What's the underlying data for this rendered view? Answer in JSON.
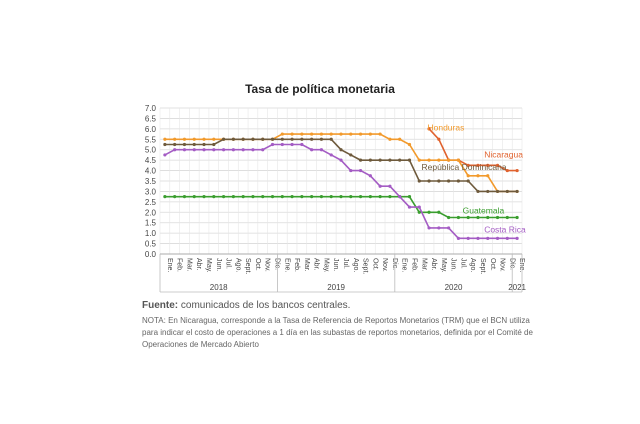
{
  "chart_data": {
    "type": "line",
    "title": "Tasa de política monetaria",
    "yticks": [
      "7.0",
      "6.5",
      "6.0",
      "5.5",
      "5.0",
      "4.5",
      "4.0",
      "3.5",
      "3.0",
      "2.5",
      "2.0",
      "1.5",
      "1.0",
      "0.5",
      "0.0"
    ],
    "ylim": [
      0,
      7
    ],
    "grid": true,
    "months": [
      "Ene.",
      "Feb.",
      "Mar.",
      "Abr.",
      "May.",
      "Jun.",
      "Jul.",
      "Ago.",
      "Sept.",
      "Oct.",
      "Nov.",
      "Dic.",
      "Ene.",
      "Feb.",
      "Mar.",
      "Abr.",
      "May.",
      "Jun.",
      "Jul.",
      "Ago.",
      "Sept.",
      "Oct.",
      "Nov.",
      "Dic.",
      "Ene.",
      "Feb.",
      "Mar.",
      "Abr.",
      "May.",
      "Jun.",
      "Jul.",
      "Ago.",
      "Sept.",
      "Oct.",
      "Nov.",
      "Dic.",
      "Ene."
    ],
    "years": [
      {
        "label": "2018",
        "start": 0,
        "end": 11
      },
      {
        "label": "2019",
        "start": 12,
        "end": 23
      },
      {
        "label": "2020",
        "start": 24,
        "end": 35
      },
      {
        "label": "2021",
        "start": 36,
        "end": 36
      }
    ],
    "series": [
      {
        "name": "Nicaragua",
        "color": "#e0622e",
        "values": [
          null,
          null,
          null,
          null,
          null,
          null,
          null,
          null,
          null,
          null,
          null,
          null,
          null,
          null,
          null,
          null,
          null,
          null,
          null,
          null,
          null,
          null,
          null,
          null,
          null,
          null,
          null,
          6.0,
          5.5,
          4.5,
          4.5,
          4.25,
          4.25,
          4.25,
          4.25,
          4.0,
          4.0
        ]
      },
      {
        "name": "Honduras",
        "color": "#f29a2c",
        "values": [
          5.5,
          5.5,
          5.5,
          5.5,
          5.5,
          5.5,
          5.5,
          5.5,
          5.5,
          5.5,
          5.5,
          5.5,
          5.75,
          5.75,
          5.75,
          5.75,
          5.75,
          5.75,
          5.75,
          5.75,
          5.75,
          5.75,
          5.75,
          5.5,
          5.5,
          5.25,
          4.5,
          4.5,
          4.5,
          4.5,
          4.5,
          3.75,
          3.75,
          3.75,
          3.0,
          3.0,
          3.0
        ]
      },
      {
        "name": "República Dominicana",
        "color": "#6e5a3c",
        "values": [
          5.25,
          5.25,
          5.25,
          5.25,
          5.25,
          5.25,
          5.5,
          5.5,
          5.5,
          5.5,
          5.5,
          5.5,
          5.5,
          5.5,
          5.5,
          5.5,
          5.5,
          5.5,
          5.0,
          4.75,
          4.5,
          4.5,
          4.5,
          4.5,
          4.5,
          4.5,
          3.5,
          3.5,
          3.5,
          3.5,
          3.5,
          3.5,
          3.0,
          3.0,
          3.0,
          3.0,
          3.0
        ]
      },
      {
        "name": "Guatemala",
        "color": "#3a9e2e",
        "values": [
          2.75,
          2.75,
          2.75,
          2.75,
          2.75,
          2.75,
          2.75,
          2.75,
          2.75,
          2.75,
          2.75,
          2.75,
          2.75,
          2.75,
          2.75,
          2.75,
          2.75,
          2.75,
          2.75,
          2.75,
          2.75,
          2.75,
          2.75,
          2.75,
          2.75,
          2.75,
          2.0,
          2.0,
          2.0,
          1.75,
          1.75,
          1.75,
          1.75,
          1.75,
          1.75,
          1.75,
          1.75
        ]
      },
      {
        "name": "Costa Rica",
        "color": "#a45cc4",
        "values": [
          4.75,
          5.0,
          5.0,
          5.0,
          5.0,
          5.0,
          5.0,
          5.0,
          5.0,
          5.0,
          5.0,
          5.25,
          5.25,
          5.25,
          5.25,
          5.0,
          5.0,
          4.75,
          4.5,
          4.0,
          4.0,
          3.75,
          3.25,
          3.25,
          2.75,
          2.25,
          2.25,
          1.25,
          1.25,
          1.25,
          0.75,
          0.75,
          0.75,
          0.75,
          0.75,
          0.75,
          0.75
        ]
      }
    ]
  },
  "source": {
    "label": "Fuente:",
    "text": " comunicados de los bancos centrales."
  },
  "note": "NOTA: En Nicaragua, corresponde a la Tasa de Referencia de Reportos Monetarios (TRM) que el BCN utiliza para indicar el costo de operaciones a 1 día en las subastas de reportos monetarios, definida por el Comité de Operaciones de Mercado Abierto"
}
